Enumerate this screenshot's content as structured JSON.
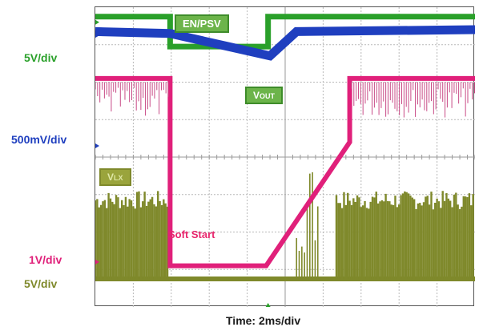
{
  "chart_data": {
    "type": "line",
    "title": "",
    "xlabel": "Time: 2ms/div",
    "ylabel": "",
    "grid": true,
    "x_divisions": 10,
    "y_divisions": 8,
    "x": [
      0,
      1,
      2,
      3,
      4,
      5,
      6,
      7,
      8,
      9,
      10
    ],
    "series": [
      {
        "name": "EN/PSV",
        "scale": "5V/div",
        "color": "#2aa02a",
        "values": [
          7.7,
          7.7,
          7.0,
          7.0,
          7.0,
          7.0,
          7.7,
          7.7,
          7.7,
          7.7,
          7.7
        ]
      },
      {
        "name": "VOUT",
        "scale": "500mV/div",
        "color": "#1f3fbf",
        "values": [
          7.3,
          7.3,
          7.2,
          6.9,
          6.7,
          7.3,
          7.4,
          7.4,
          7.4,
          7.4,
          7.4
        ]
      },
      {
        "name": "",
        "scale": "1V/div",
        "color": "#e0207a",
        "values": [
          6.1,
          6.1,
          1.1,
          1.1,
          1.1,
          2.0,
          5.0,
          6.1,
          6.1,
          6.1,
          6.1
        ]
      },
      {
        "name": "VLX",
        "scale": "5V/div",
        "color": "#7f892b",
        "values": [
          0.75,
          0.75,
          0.75,
          0.75,
          0.75,
          0.75,
          0.75,
          0.75,
          0.75,
          0.75,
          0.75
        ]
      }
    ],
    "scale_labels": [
      "5V/div",
      "500mV/div",
      "1V/div",
      "5V/div"
    ],
    "labels": {
      "enpsv": "EN/PSV",
      "vout_main": "V",
      "vout_sub": "OUT",
      "vlx_main": "V",
      "vlx_sub": "LX",
      "soft_start": "Soft Start"
    },
    "colors": {
      "green": "#2aa02a",
      "blue": "#1f3fbf",
      "pink": "#e0207a",
      "olive": "#7f892b",
      "label_blue": "#1f3fbf",
      "label_green": "#2aa02a",
      "label_pink": "#e0207a",
      "label_olive": "#7f892b"
    }
  }
}
